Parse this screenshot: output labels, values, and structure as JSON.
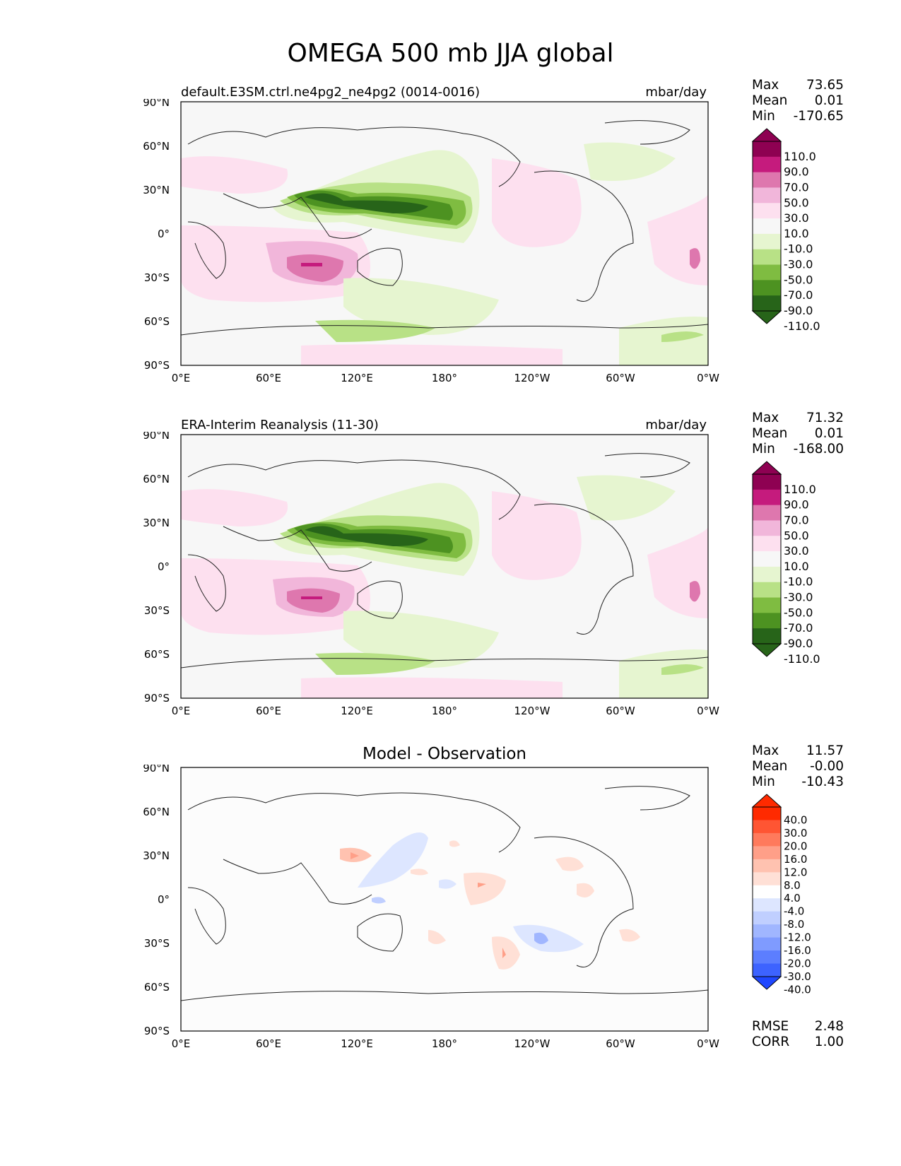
{
  "figure": {
    "title": "OMEGA 500 mb JJA global",
    "panels": [
      {
        "title_left": "default.E3SM.ctrl.ne4pg2_ne4pg2 (0014-0016)",
        "title_right": "mbar/day",
        "stats": {
          "max_label": "Max",
          "max": "73.65",
          "mean_label": "Mean",
          "mean": "0.01",
          "min_label": "Min",
          "min": "-170.65"
        },
        "colorbar": [
          "110.0",
          "90.0",
          "70.0",
          "50.0",
          "30.0",
          "10.0",
          "-10.0",
          "-30.0",
          "-50.0",
          "-70.0",
          "-90.0",
          "-110.0"
        ]
      },
      {
        "title_left": "ERA-Interim Reanalysis (11-30)",
        "title_right": "mbar/day",
        "stats": {
          "max_label": "Max",
          "max": "71.32",
          "mean_label": "Mean",
          "mean": "0.01",
          "min_label": "Min",
          "min": "-168.00"
        },
        "colorbar": [
          "110.0",
          "90.0",
          "70.0",
          "50.0",
          "30.0",
          "10.0",
          "-10.0",
          "-30.0",
          "-50.0",
          "-70.0",
          "-90.0",
          "-110.0"
        ]
      },
      {
        "title_center": "Model - Observation",
        "stats": {
          "max_label": "Max",
          "max": "11.57",
          "mean_label": "Mean",
          "mean": "-0.00",
          "min_label": "Min",
          "min": "-10.43"
        },
        "colorbar": [
          "40.0",
          "30.0",
          "20.0",
          "16.0",
          "12.0",
          "8.0",
          "4.0",
          "-4.0",
          "-8.0",
          "-12.0",
          "-16.0",
          "-20.0",
          "-30.0",
          "-40.0"
        ],
        "metrics": {
          "rmse_label": "RMSE",
          "rmse": "2.48",
          "corr_label": "CORR",
          "corr": "1.00"
        }
      }
    ],
    "lat_ticks": [
      "90°N",
      "60°N",
      "30°N",
      "0°",
      "30°S",
      "60°S",
      "90°S"
    ],
    "lon_ticks": [
      "0°E",
      "60°E",
      "120°E",
      "180°",
      "120°W",
      "60°W",
      "0°W"
    ],
    "colors": {
      "pos_scale": [
        "#8e0152",
        "#c51b7d",
        "#de77ae",
        "#f1b6da",
        "#fde0ef"
      ],
      "neutral": "#f7f7f7",
      "neg_scale": [
        "#e6f5d0",
        "#b8e186",
        "#7fbc41",
        "#4d9221",
        "#276419"
      ],
      "diff_pos": [
        "#ff2a00",
        "#ff5533",
        "#ff7a5c",
        "#ff9f88",
        "#ffc2b0",
        "#ffe0d6"
      ],
      "diff_neg": [
        "#dde6ff",
        "#c0cfff",
        "#a0b6ff",
        "#7f9bff",
        "#5c7eff",
        "#3d63ff",
        "#1f47ff"
      ]
    }
  }
}
